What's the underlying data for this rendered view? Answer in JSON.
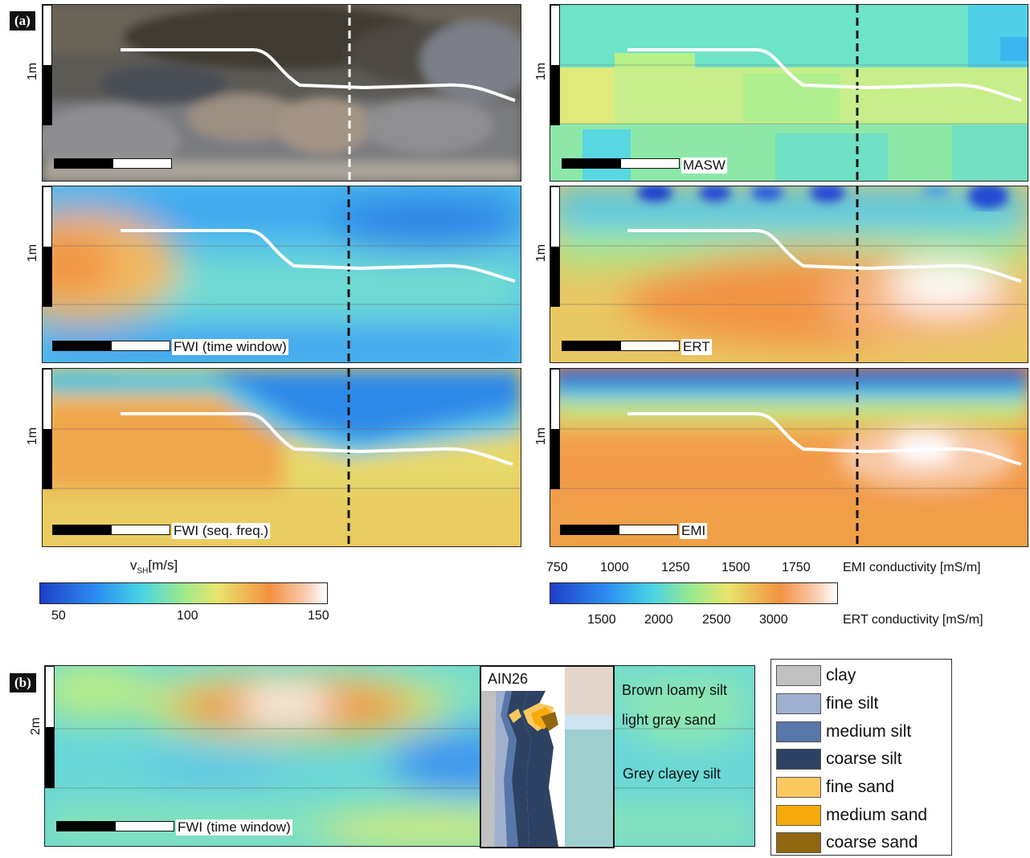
{
  "panel_a": {
    "label": "(a)",
    "scale_label": "1m",
    "methods": {
      "masw": "MASW",
      "fwi_tw": "FWI (time window)",
      "ert": "ERT",
      "fwi_sf": "FWI (seq. freq.)",
      "emi": "EMI"
    },
    "colorbar_vsh": {
      "label_main": "v",
      "label_sub": "SH",
      "label_unit": "[m/s]",
      "ticks": [
        "50",
        "100",
        "150"
      ]
    },
    "colorbar_cond": {
      "emi_ticks": [
        "750",
        "1000",
        "1250",
        "1500",
        "1750"
      ],
      "emi_label": "EMI conductivity [mS/m]",
      "ert_ticks": [
        "1500",
        "2000",
        "2500",
        "3000"
      ],
      "ert_label": "ERT conductivity [mS/m]"
    }
  },
  "panel_b": {
    "label": "(b)",
    "scale_label": "2m",
    "method": "FWI (time window)",
    "core_name": "AIN26",
    "layers": [
      "Brown loamy silt",
      "light gray sand",
      "Grey clayey silt"
    ]
  },
  "legend": {
    "items": [
      {
        "label": "clay",
        "color": "#c0c0c0"
      },
      {
        "label": "fine silt",
        "color": "#9fb0cf"
      },
      {
        "label": "medium silt",
        "color": "#5677a8"
      },
      {
        "label": "coarse silt",
        "color": "#2e4264"
      },
      {
        "label": "fine sand",
        "color": "#fbc85f"
      },
      {
        "label": "medium sand",
        "color": "#f7aa0c"
      },
      {
        "label": "coarse sand",
        "color": "#906610"
      }
    ]
  },
  "colors": {
    "deep_blue": "#1f4fcf",
    "sky": "#32a8f0",
    "cyan": "#5ce0d8",
    "green": "#a6ed8a",
    "yellow": "#e6e36a",
    "orange": "#f29a48",
    "white": "#ffffff"
  }
}
